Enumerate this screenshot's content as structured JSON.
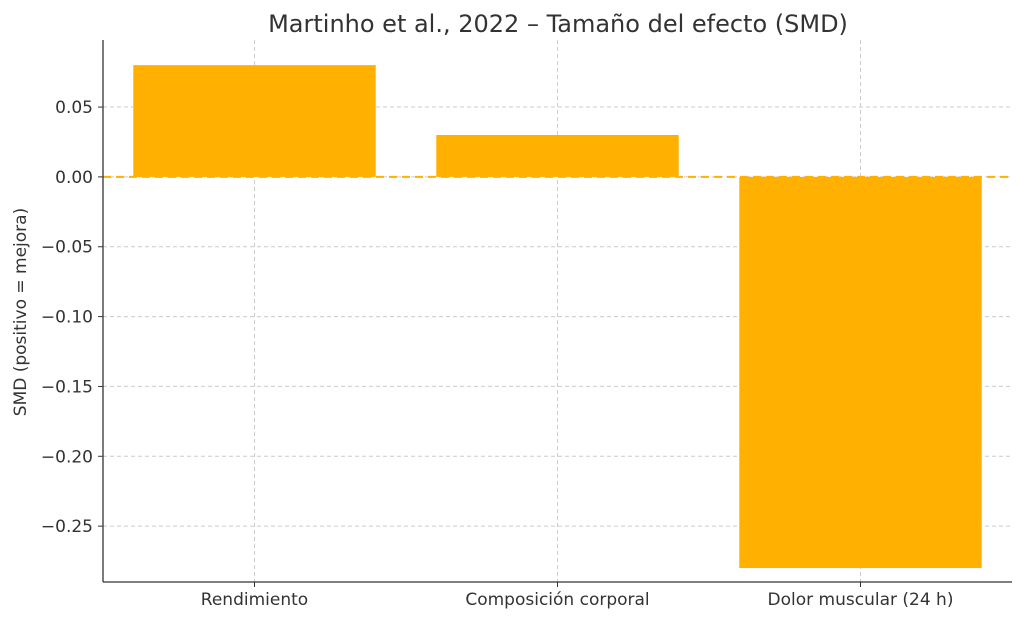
{
  "chart_data": {
    "type": "bar",
    "title": "Martinho et al., 2022 – Tamaño del efecto (SMD)",
    "xlabel": "",
    "ylabel": "SMD (positivo = mejora)",
    "categories": [
      "Rendimiento",
      "Composición corporal",
      "Dolor muscular (24 h)"
    ],
    "values": [
      0.08,
      0.03,
      -0.28
    ],
    "ylim": [
      -0.29,
      0.098
    ],
    "yticks": [
      0.05,
      0.0,
      -0.05,
      -0.1,
      -0.15,
      -0.2,
      -0.25
    ],
    "ytick_labels": [
      "0.05",
      "0.00",
      "−0.05",
      "−0.10",
      "−0.15",
      "−0.20",
      "−0.25"
    ],
    "grid": true,
    "bar_color": "#ffb000",
    "zero_line_color": "#ffb000"
  }
}
